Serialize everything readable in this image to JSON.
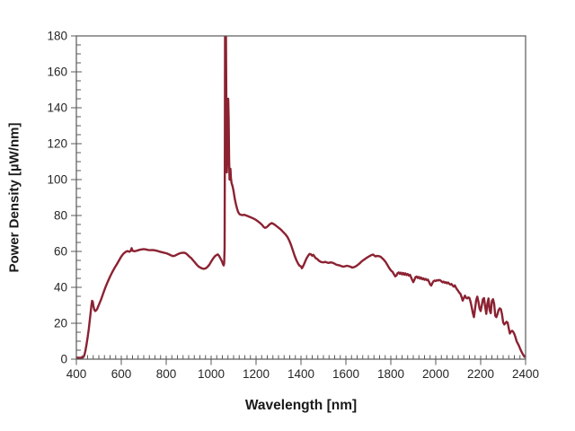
{
  "chart_data": {
    "type": "line",
    "title": "",
    "xlabel": "Wavelength [nm]",
    "ylabel": "Power Density [µW/nm]",
    "xlim": [
      400,
      2400
    ],
    "ylim": [
      0,
      180
    ],
    "x_ticks": [
      400,
      600,
      800,
      1000,
      1200,
      1400,
      1600,
      1800,
      2000,
      2200,
      2400
    ],
    "y_ticks": [
      0,
      20,
      40,
      60,
      80,
      100,
      120,
      140,
      160,
      180
    ],
    "x_minor_step": 25,
    "y_minor_step": 5,
    "grid": false,
    "legend_position": "none",
    "colors": {
      "line": "#8B2232",
      "axis": "#595959",
      "tick_label": "#262626",
      "title_text": "#1a1a1a",
      "background": "#FFFFFF"
    },
    "series": [
      {
        "name": "power-density-spectrum",
        "color": "#8B2232",
        "points": [
          [
            400,
            1
          ],
          [
            408,
            0.8
          ],
          [
            416,
            0.8
          ],
          [
            424,
            0.9
          ],
          [
            430,
            1
          ],
          [
            435,
            2
          ],
          [
            440,
            4.5
          ],
          [
            445,
            8
          ],
          [
            450,
            12
          ],
          [
            455,
            16.5
          ],
          [
            460,
            22
          ],
          [
            464,
            26.5
          ],
          [
            467,
            30
          ],
          [
            470,
            32.5
          ],
          [
            473,
            32
          ],
          [
            476,
            29.5
          ],
          [
            480,
            27.5
          ],
          [
            484,
            26.8
          ],
          [
            488,
            27.2
          ],
          [
            492,
            27.8
          ],
          [
            496,
            29
          ],
          [
            500,
            30.2
          ],
          [
            510,
            33.2
          ],
          [
            520,
            36.8
          ],
          [
            530,
            40.2
          ],
          [
            540,
            43.2
          ],
          [
            550,
            46
          ],
          [
            560,
            48.5
          ],
          [
            570,
            50.8
          ],
          [
            580,
            52.8
          ],
          [
            590,
            55
          ],
          [
            600,
            57.2
          ],
          [
            610,
            58.8
          ],
          [
            620,
            59.8
          ],
          [
            628,
            60.2
          ],
          [
            636,
            59.8
          ],
          [
            642,
            60.3
          ],
          [
            646,
            61.8
          ],
          [
            650,
            60.4
          ],
          [
            658,
            60.1
          ],
          [
            666,
            60.3
          ],
          [
            674,
            60.6
          ],
          [
            682,
            60.9
          ],
          [
            690,
            61.1
          ],
          [
            700,
            61.3
          ],
          [
            710,
            61.1
          ],
          [
            720,
            60.8
          ],
          [
            730,
            60.7
          ],
          [
            740,
            60.8
          ],
          [
            750,
            60.6
          ],
          [
            760,
            60.3
          ],
          [
            770,
            59.9
          ],
          [
            780,
            59.6
          ],
          [
            790,
            59.3
          ],
          [
            800,
            59
          ],
          [
            810,
            58.5
          ],
          [
            820,
            57.9
          ],
          [
            830,
            57.4
          ],
          [
            838,
            57.6
          ],
          [
            846,
            58.1
          ],
          [
            854,
            58.6
          ],
          [
            862,
            59
          ],
          [
            870,
            59.2
          ],
          [
            880,
            59.3
          ],
          [
            888,
            58.9
          ],
          [
            896,
            58
          ],
          [
            904,
            57
          ],
          [
            912,
            56.2
          ],
          [
            920,
            55
          ],
          [
            928,
            53.8
          ],
          [
            936,
            52.6
          ],
          [
            944,
            51.6
          ],
          [
            952,
            51
          ],
          [
            960,
            50.5
          ],
          [
            968,
            50.3
          ],
          [
            976,
            50.6
          ],
          [
            984,
            51.4
          ],
          [
            992,
            52.6
          ],
          [
            1000,
            54.3
          ],
          [
            1008,
            55.9
          ],
          [
            1016,
            57.2
          ],
          [
            1024,
            58
          ],
          [
            1030,
            58.3
          ],
          [
            1036,
            57.4
          ],
          [
            1042,
            56
          ],
          [
            1048,
            54.5
          ],
          [
            1053,
            52.8
          ],
          [
            1056,
            52.2
          ],
          [
            1058,
            53.5
          ],
          [
            1060,
            62
          ],
          [
            1061,
            110
          ],
          [
            1062,
            180
          ],
          [
            1066,
            180
          ],
          [
            1068,
            138
          ],
          [
            1070,
            104
          ],
          [
            1072,
            112
          ],
          [
            1074,
            132
          ],
          [
            1076,
            145
          ],
          [
            1078,
            134
          ],
          [
            1080,
            112
          ],
          [
            1082,
            100
          ],
          [
            1084,
            103
          ],
          [
            1086,
            106
          ],
          [
            1088,
            101
          ],
          [
            1091,
            98
          ],
          [
            1095,
            96.5
          ],
          [
            1100,
            93.5
          ],
          [
            1105,
            89.5
          ],
          [
            1110,
            86.5
          ],
          [
            1115,
            84
          ],
          [
            1120,
            82
          ],
          [
            1126,
            80.8
          ],
          [
            1132,
            80.4
          ],
          [
            1140,
            80.2
          ],
          [
            1148,
            80.4
          ],
          [
            1156,
            80
          ],
          [
            1164,
            79.6
          ],
          [
            1172,
            79.2
          ],
          [
            1180,
            78.8
          ],
          [
            1190,
            78.2
          ],
          [
            1200,
            77.5
          ],
          [
            1210,
            76.6
          ],
          [
            1220,
            75.6
          ],
          [
            1228,
            74.6
          ],
          [
            1234,
            73.6
          ],
          [
            1240,
            73.1
          ],
          [
            1246,
            73.4
          ],
          [
            1252,
            74
          ],
          [
            1258,
            74.8
          ],
          [
            1264,
            75.4
          ],
          [
            1270,
            75.8
          ],
          [
            1276,
            75.4
          ],
          [
            1284,
            74.8
          ],
          [
            1292,
            74
          ],
          [
            1300,
            73.2
          ],
          [
            1310,
            72.2
          ],
          [
            1320,
            70.9
          ],
          [
            1330,
            69.6
          ],
          [
            1340,
            68
          ],
          [
            1348,
            66
          ],
          [
            1356,
            63.5
          ],
          [
            1364,
            60.5
          ],
          [
            1372,
            57.5
          ],
          [
            1380,
            55
          ],
          [
            1388,
            53
          ],
          [
            1394,
            52
          ],
          [
            1400,
            51.7
          ],
          [
            1404,
            50.6
          ],
          [
            1408,
            51.4
          ],
          [
            1414,
            53
          ],
          [
            1420,
            54.8
          ],
          [
            1426,
            56.4
          ],
          [
            1432,
            57.6
          ],
          [
            1438,
            58.6
          ],
          [
            1444,
            58.4
          ],
          [
            1450,
            57.6
          ],
          [
            1455,
            58.1
          ],
          [
            1460,
            57.2
          ],
          [
            1466,
            56.2
          ],
          [
            1472,
            55.8
          ],
          [
            1480,
            54.8
          ],
          [
            1490,
            54.1
          ],
          [
            1500,
            53.9
          ],
          [
            1508,
            54.2
          ],
          [
            1516,
            53.8
          ],
          [
            1524,
            53.6
          ],
          [
            1532,
            53.9
          ],
          [
            1540,
            53.7
          ],
          [
            1548,
            53.3
          ],
          [
            1556,
            52.7
          ],
          [
            1564,
            52.4
          ],
          [
            1572,
            52.2
          ],
          [
            1580,
            51.8
          ],
          [
            1588,
            51.5
          ],
          [
            1596,
            51.7
          ],
          [
            1604,
            52
          ],
          [
            1612,
            51.8
          ],
          [
            1620,
            51.5
          ],
          [
            1628,
            51
          ],
          [
            1636,
            51.2
          ],
          [
            1644,
            51.7
          ],
          [
            1652,
            52.4
          ],
          [
            1660,
            53.2
          ],
          [
            1668,
            54.2
          ],
          [
            1676,
            55
          ],
          [
            1684,
            55.7
          ],
          [
            1692,
            56.4
          ],
          [
            1700,
            57
          ],
          [
            1708,
            57.6
          ],
          [
            1716,
            58.1
          ],
          [
            1722,
            58.2
          ],
          [
            1727,
            57.6
          ],
          [
            1732,
            57.2
          ],
          [
            1738,
            57.5
          ],
          [
            1744,
            57.4
          ],
          [
            1750,
            57.3
          ],
          [
            1756,
            56.9
          ],
          [
            1762,
            56.2
          ],
          [
            1770,
            55.2
          ],
          [
            1778,
            53.9
          ],
          [
            1786,
            52.2
          ],
          [
            1794,
            50.5
          ],
          [
            1802,
            49.2
          ],
          [
            1808,
            48.6
          ],
          [
            1814,
            47.2
          ],
          [
            1820,
            46.1
          ],
          [
            1825,
            46.6
          ],
          [
            1830,
            47.9
          ],
          [
            1835,
            48.3
          ],
          [
            1840,
            47.5
          ],
          [
            1845,
            48.2
          ],
          [
            1850,
            47.2
          ],
          [
            1855,
            48
          ],
          [
            1860,
            47
          ],
          [
            1865,
            47.8
          ],
          [
            1870,
            46.8
          ],
          [
            1875,
            47.4
          ],
          [
            1880,
            46.5
          ],
          [
            1885,
            47
          ],
          [
            1890,
            45.6
          ],
          [
            1895,
            44.2
          ],
          [
            1900,
            42.9
          ],
          [
            1905,
            44.2
          ],
          [
            1910,
            45.7
          ],
          [
            1915,
            46
          ],
          [
            1920,
            45.2
          ],
          [
            1925,
            45.8
          ],
          [
            1930,
            44.8
          ],
          [
            1935,
            45.4
          ],
          [
            1940,
            44.5
          ],
          [
            1945,
            45
          ],
          [
            1950,
            44.2
          ],
          [
            1955,
            44.7
          ],
          [
            1960,
            44
          ],
          [
            1965,
            44.3
          ],
          [
            1970,
            43.1
          ],
          [
            1975,
            41.6
          ],
          [
            1980,
            41
          ],
          [
            1985,
            42.4
          ],
          [
            1990,
            43.4
          ],
          [
            1995,
            43.8
          ],
          [
            2000,
            43.5
          ],
          [
            2005,
            44
          ],
          [
            2010,
            43.8
          ],
          [
            2015,
            44.1
          ],
          [
            2020,
            43.9
          ],
          [
            2025,
            43.4
          ],
          [
            2030,
            42.8
          ],
          [
            2035,
            43.2
          ],
          [
            2040,
            42.5
          ],
          [
            2045,
            42.9
          ],
          [
            2050,
            42.2
          ],
          [
            2055,
            42.7
          ],
          [
            2060,
            42
          ],
          [
            2065,
            41.5
          ],
          [
            2070,
            41.9
          ],
          [
            2075,
            41
          ],
          [
            2080,
            40.4
          ],
          [
            2085,
            41.1
          ],
          [
            2090,
            39.8
          ],
          [
            2095,
            38.8
          ],
          [
            2100,
            38
          ],
          [
            2105,
            37
          ],
          [
            2110,
            36.4
          ],
          [
            2115,
            34.6
          ],
          [
            2120,
            32.6
          ],
          [
            2125,
            34
          ],
          [
            2130,
            35.4
          ],
          [
            2135,
            34.2
          ],
          [
            2140,
            33.8
          ],
          [
            2145,
            34.4
          ],
          [
            2150,
            34.1
          ],
          [
            2155,
            32
          ],
          [
            2160,
            29
          ],
          [
            2165,
            25.8
          ],
          [
            2170,
            23.4
          ],
          [
            2175,
            28
          ],
          [
            2180,
            32.8
          ],
          [
            2185,
            34.8
          ],
          [
            2190,
            32
          ],
          [
            2195,
            28.2
          ],
          [
            2200,
            26.8
          ],
          [
            2205,
            30
          ],
          [
            2210,
            33.4
          ],
          [
            2215,
            34
          ],
          [
            2220,
            29.2
          ],
          [
            2225,
            25.2
          ],
          [
            2230,
            31
          ],
          [
            2235,
            33.8
          ],
          [
            2240,
            27.2
          ],
          [
            2245,
            25.6
          ],
          [
            2250,
            32.4
          ],
          [
            2255,
            33.4
          ],
          [
            2260,
            30.8
          ],
          [
            2265,
            24.2
          ],
          [
            2270,
            23.4
          ],
          [
            2275,
            25.2
          ],
          [
            2280,
            27.4
          ],
          [
            2285,
            28.3
          ],
          [
            2290,
            27.8
          ],
          [
            2295,
            25
          ],
          [
            2300,
            20.6
          ],
          [
            2305,
            19.3
          ],
          [
            2310,
            20
          ],
          [
            2315,
            20.8
          ],
          [
            2320,
            20.4
          ],
          [
            2325,
            17.2
          ],
          [
            2330,
            14.3
          ],
          [
            2335,
            15.4
          ],
          [
            2340,
            15.8
          ],
          [
            2345,
            15.2
          ],
          [
            2350,
            14
          ],
          [
            2355,
            12.2
          ],
          [
            2360,
            10
          ],
          [
            2365,
            8.8
          ],
          [
            2370,
            7.6
          ],
          [
            2375,
            6
          ],
          [
            2380,
            4.6
          ],
          [
            2385,
            3.4
          ],
          [
            2390,
            2.3
          ],
          [
            2395,
            1.3
          ],
          [
            2400,
            1.8
          ]
        ]
      }
    ]
  }
}
